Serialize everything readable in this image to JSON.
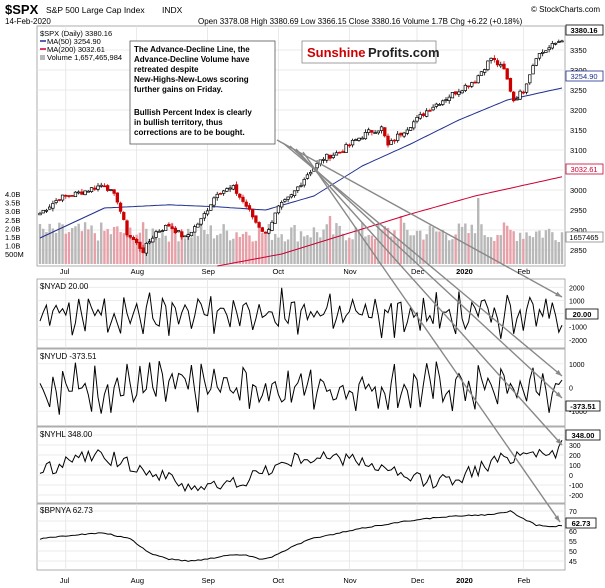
{
  "header": {
    "symbol": "$SPX",
    "name": "S&P 500 Large Cap Index",
    "exchange": "INDX",
    "copyright": "© StockCharts.com",
    "date": "14-Feb-2020",
    "ohlc_text": "Open 3378.08  High 3380.69  Low 3366.15  Close 3380.16  Volume 1.7B  Chg +6.22 (+0.18%)"
  },
  "legend": {
    "spx": "$SPX (Daily) 3380.16",
    "ma50": "MA(50) 3254.90",
    "ma200": "MA(200) 3032.61",
    "volume": "Volume 1,657,465,984"
  },
  "annotation": {
    "line1": "The Advance-Decline Line, the",
    "line2": "Advance-Decline Volume have",
    "line3": "retreated despite",
    "line4": "New-Highs-New-Lows scoring",
    "line5": "further gains on Friday.",
    "line6": "Bullish Percent Index is clearly",
    "line7": "in bullish territory, thus",
    "line8": "corrections are to be bought."
  },
  "logo": {
    "part1": "Sunshine",
    "part2": "Profits.com"
  },
  "colors": {
    "up": "#000000",
    "down": "#cc0000",
    "ma50": "#1f2f8f",
    "ma200": "#cc0033",
    "volume": "#b8b8b8",
    "volume_down": "#e8a0a8",
    "grid": "#e4e4e4"
  },
  "chart_data": [
    {
      "type": "candlestick",
      "title": "$SPX (Daily) 3380.16",
      "x_labels": [
        "Jul",
        "Aug",
        "Sep",
        "Oct",
        "Nov",
        "Dec",
        "2020",
        "Jan",
        "Feb"
      ],
      "y_ticks": [
        2850,
        2900,
        2950,
        3000,
        3050,
        3100,
        3150,
        3200,
        3250,
        3300,
        3350
      ],
      "ylim": [
        2820,
        3400
      ],
      "last_labels": {
        "close": "3380.16",
        "ma50": "3254.90",
        "ma200": "3032.61"
      },
      "close_keypoints": [
        [
          0,
          2942
        ],
        [
          6,
          2980
        ],
        [
          13,
          2995
        ],
        [
          20,
          3015
        ],
        [
          24,
          2975
        ],
        [
          27,
          2892
        ],
        [
          32,
          2848
        ],
        [
          36,
          2895
        ],
        [
          40,
          2912
        ],
        [
          45,
          2880
        ],
        [
          50,
          2925
        ],
        [
          55,
          2995
        ],
        [
          60,
          3005
        ],
        [
          64,
          2960
        ],
        [
          67,
          2920
        ],
        [
          70,
          2890
        ],
        [
          74,
          2955
        ],
        [
          78,
          2985
        ],
        [
          83,
          3040
        ],
        [
          88,
          3080
        ],
        [
          93,
          3095
        ],
        [
          98,
          3125
        ],
        [
          102,
          3145
        ],
        [
          106,
          3155
        ],
        [
          108,
          3110
        ],
        [
          111,
          3135
        ],
        [
          116,
          3170
        ],
        [
          121,
          3205
        ],
        [
          126,
          3230
        ],
        [
          131,
          3255
        ],
        [
          135,
          3275
        ],
        [
          140,
          3330
        ],
        [
          144,
          3300
        ],
        [
          147,
          3225
        ],
        [
          150,
          3250
        ],
        [
          154,
          3335
        ],
        [
          158,
          3355
        ],
        [
          162,
          3378
        ]
      ],
      "ma50_keypoints": [
        [
          0,
          2880
        ],
        [
          20,
          2955
        ],
        [
          40,
          2963
        ],
        [
          55,
          2958
        ],
        [
          70,
          2950
        ],
        [
          85,
          2985
        ],
        [
          100,
          3060
        ],
        [
          115,
          3115
        ],
        [
          130,
          3175
        ],
        [
          145,
          3225
        ],
        [
          162,
          3255
        ]
      ],
      "ma200_keypoints": [
        [
          55,
          2810
        ],
        [
          75,
          2840
        ],
        [
          95,
          2890
        ],
        [
          115,
          2940
        ],
        [
          135,
          2985
        ],
        [
          162,
          3033
        ]
      ],
      "volume_label": "1657465",
      "volume_ticks": [
        "4.0B",
        "3.5B",
        "3.0B",
        "2.5B",
        "2.0B",
        "1.5B",
        "1.0B",
        "500M"
      ]
    },
    {
      "type": "line",
      "title": "$NYAD 20.00",
      "last_value": "20.00",
      "y_ticks": [
        2000,
        1000,
        0,
        -1000,
        -2000
      ],
      "ylim": [
        -2400,
        2400
      ]
    },
    {
      "type": "line",
      "title": "$NYUD -373.51",
      "last_value": "-373.51",
      "y_ticks": [
        1000,
        0,
        -1000
      ],
      "ylim": [
        -1500,
        1500
      ]
    },
    {
      "type": "line",
      "title": "$NYHL 348.00",
      "last_value": "348.00",
      "y_ticks": [
        400,
        300,
        200,
        100,
        0,
        -100,
        -200
      ],
      "ylim": [
        -250,
        450
      ]
    },
    {
      "type": "line",
      "title": "$BPNYA 62.73",
      "last_value": "62.73",
      "y_ticks": [
        70,
        65,
        60,
        55,
        50,
        45
      ],
      "ylim": [
        42,
        72
      ],
      "keypoints": [
        [
          0,
          56
        ],
        [
          10,
          58
        ],
        [
          20,
          59
        ],
        [
          28,
          56
        ],
        [
          34,
          49
        ],
        [
          40,
          46
        ],
        [
          46,
          45
        ],
        [
          52,
          46
        ],
        [
          58,
          48
        ],
        [
          64,
          48
        ],
        [
          68,
          46
        ],
        [
          72,
          47
        ],
        [
          78,
          52
        ],
        [
          84,
          56
        ],
        [
          90,
          58
        ],
        [
          96,
          60
        ],
        [
          102,
          62
        ],
        [
          110,
          64
        ],
        [
          118,
          66
        ],
        [
          126,
          67
        ],
        [
          134,
          68
        ],
        [
          140,
          68
        ],
        [
          146,
          70
        ],
        [
          150,
          66
        ],
        [
          154,
          63
        ],
        [
          158,
          62
        ],
        [
          162,
          62.73
        ]
      ]
    }
  ]
}
